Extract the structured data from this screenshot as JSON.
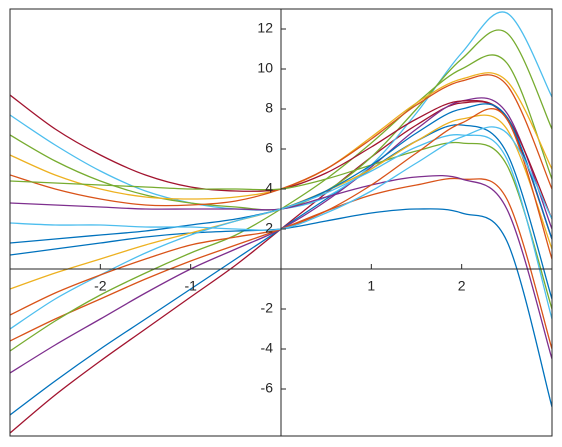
{
  "chart_data": {
    "type": "line",
    "x": [
      -3,
      -2.5,
      -2,
      -1.5,
      -1,
      -0.5,
      0,
      0.5,
      1,
      1.5,
      2,
      2.5,
      3
    ],
    "xlim": [
      -3,
      3
    ],
    "ylim": [
      -8.35,
      13
    ],
    "xticks": [
      -2,
      -1,
      1,
      2
    ],
    "yticks": [
      -6,
      -4,
      -2,
      2,
      4,
      6,
      8,
      10,
      12
    ],
    "series": [
      {
        "color": "#A2142F",
        "values": [
          -8.2,
          -6.3,
          -4.6,
          -3.0,
          -1.4,
          0.2,
          2.0,
          3.8,
          5.6,
          7.2,
          8.3,
          7.5,
          1.5
        ]
      },
      {
        "color": "#0072BD",
        "values": [
          -7.3,
          -5.6,
          -4.0,
          -2.5,
          -1.0,
          0.5,
          2.0,
          3.5,
          5.0,
          6.4,
          7.2,
          5.8,
          -1.5
        ]
      },
      {
        "color": "#7E2F8E",
        "values": [
          -5.2,
          -3.8,
          -2.5,
          -1.2,
          0,
          1.0,
          2.0,
          3.4,
          5.1,
          7.0,
          8.4,
          7.8,
          2.0
        ]
      },
      {
        "color": "#D95319",
        "values": [
          -3.6,
          -2.5,
          -1.5,
          -0.5,
          0.4,
          1.2,
          2.0,
          2.9,
          3.7,
          4.2,
          4.5,
          3.5,
          -4.0
        ]
      },
      {
        "color": "#77AC30",
        "values": [
          -4.1,
          -2.6,
          -1.3,
          -0.2,
          0.8,
          1.7,
          3.0,
          4.5,
          6.3,
          8.3,
          10.0,
          10.3,
          4.5
        ]
      },
      {
        "color": "#0072BD",
        "values": [
          0.7,
          1.0,
          1.3,
          1.6,
          1.8,
          1.9,
          2.0,
          2.4,
          2.8,
          3.0,
          2.8,
          1.4,
          -6.9
        ]
      },
      {
        "color": "#4DBEEE",
        "values": [
          7.7,
          6.2,
          4.9,
          3.9,
          3.3,
          3.0,
          3.0,
          3.6,
          5.2,
          7.8,
          10.8,
          12.8,
          8.6
        ]
      },
      {
        "color": "#77AC30",
        "values": [
          6.7,
          5.4,
          4.4,
          3.7,
          3.3,
          3.1,
          3.0,
          3.9,
          5.6,
          8.0,
          10.5,
          11.8,
          7.0
        ]
      },
      {
        "color": "#EDB120",
        "values": [
          5.7,
          4.7,
          4.0,
          3.6,
          3.5,
          3.6,
          4.0,
          5.0,
          6.6,
          8.3,
          9.5,
          9.4,
          5.0
        ]
      },
      {
        "color": "#A2142F",
        "values": [
          8.7,
          7.0,
          5.7,
          4.7,
          4.1,
          3.9,
          4.0,
          4.8,
          6.1,
          7.5,
          8.4,
          7.6,
          2.5
        ]
      },
      {
        "color": "#D95319",
        "values": [
          4.7,
          4.0,
          3.5,
          3.2,
          3.2,
          3.4,
          4.0,
          5.0,
          6.5,
          8.2,
          9.4,
          9.2,
          4.0
        ]
      },
      {
        "color": "#77AC30",
        "values": [
          4.4,
          4.3,
          4.2,
          4.1,
          4.0,
          4.0,
          4.0,
          4.5,
          5.2,
          5.9,
          6.3,
          5.2,
          -2.0
        ]
      },
      {
        "color": "#7E2F8E",
        "values": [
          3.3,
          3.2,
          3.1,
          3.0,
          3.0,
          3.0,
          3.0,
          3.6,
          4.2,
          4.6,
          4.5,
          3.0,
          -4.5
        ]
      },
      {
        "color": "#EDB120",
        "values": [
          -1.0,
          -0.2,
          0.5,
          1.2,
          1.8,
          2.4,
          3.0,
          3.9,
          5.0,
          6.4,
          7.5,
          7.0,
          1.0
        ]
      },
      {
        "color": "#0072BD",
        "values": [
          1.3,
          1.5,
          1.7,
          1.9,
          2.2,
          2.5,
          3.0,
          3.9,
          5.2,
          6.8,
          8.0,
          7.6,
          1.5
        ]
      },
      {
        "color": "#4DBEEE",
        "values": [
          -3.0,
          -1.5,
          -0.3,
          0.8,
          1.7,
          2.4,
          3.0,
          3.8,
          4.9,
          6.1,
          6.7,
          5.5,
          -2.5
        ]
      },
      {
        "color": "#D95319",
        "values": [
          -2.3,
          -1.2,
          -0.3,
          0.5,
          1.2,
          1.6,
          2.0,
          2.9,
          4.2,
          5.8,
          7.3,
          7.5,
          0.5
        ]
      },
      {
        "color": "#4DBEEE",
        "values": [
          2.3,
          2.2,
          2.2,
          2.1,
          2.1,
          2.0,
          2.0,
          2.8,
          3.9,
          5.3,
          6.6,
          6.8,
          2.5
        ]
      }
    ]
  }
}
